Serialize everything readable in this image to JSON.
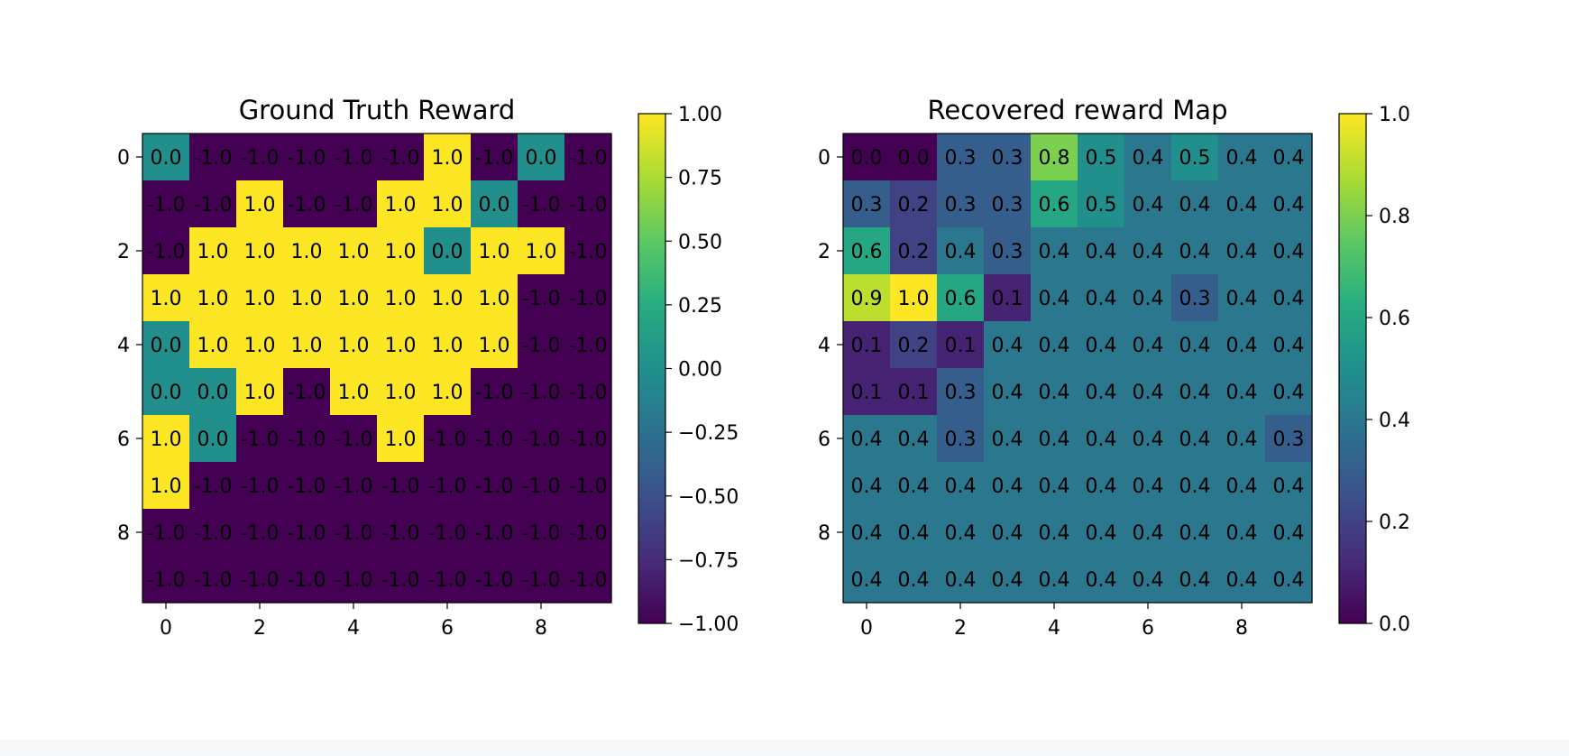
{
  "chart_data": [
    {
      "type": "heatmap",
      "title": "Ground Truth Reward",
      "colormap": "viridis",
      "x_ticks": [
        "0",
        "2",
        "4",
        "6",
        "8"
      ],
      "y_ticks": [
        "0",
        "2",
        "4",
        "6",
        "8"
      ],
      "vmin": -1.0,
      "vmax": 1.0,
      "colorbar_ticks": [
        "1.00",
        "0.75",
        "0.50",
        "0.25",
        "0.00",
        "−0.25",
        "−0.50",
        "−0.75",
        "−1.00"
      ],
      "colorbar_values": [
        1.0,
        0.75,
        0.5,
        0.25,
        0.0,
        -0.25,
        -0.5,
        -0.75,
        -1.0
      ],
      "values": [
        [
          0.0,
          -1.0,
          -1.0,
          -1.0,
          -1.0,
          -1.0,
          1.0,
          -1.0,
          0.0,
          -1.0
        ],
        [
          -1.0,
          -1.0,
          1.0,
          -1.0,
          -1.0,
          1.0,
          1.0,
          0.0,
          -1.0,
          -1.0
        ],
        [
          -1.0,
          1.0,
          1.0,
          1.0,
          1.0,
          1.0,
          0.0,
          1.0,
          1.0,
          -1.0
        ],
        [
          1.0,
          1.0,
          1.0,
          1.0,
          1.0,
          1.0,
          1.0,
          1.0,
          -1.0,
          -1.0
        ],
        [
          0.0,
          1.0,
          1.0,
          1.0,
          1.0,
          1.0,
          1.0,
          1.0,
          -1.0,
          -1.0
        ],
        [
          0.0,
          0.0,
          1.0,
          -1.0,
          1.0,
          1.0,
          1.0,
          -1.0,
          -1.0,
          -1.0
        ],
        [
          1.0,
          0.0,
          -1.0,
          -1.0,
          -1.0,
          1.0,
          -1.0,
          -1.0,
          -1.0,
          -1.0
        ],
        [
          1.0,
          -1.0,
          -1.0,
          -1.0,
          -1.0,
          -1.0,
          -1.0,
          -1.0,
          -1.0,
          -1.0
        ],
        [
          -1.0,
          -1.0,
          -1.0,
          -1.0,
          -1.0,
          -1.0,
          -1.0,
          -1.0,
          -1.0,
          -1.0
        ],
        [
          -1.0,
          -1.0,
          -1.0,
          -1.0,
          -1.0,
          -1.0,
          -1.0,
          -1.0,
          -1.0,
          -1.0
        ]
      ]
    },
    {
      "type": "heatmap",
      "title": "Recovered reward Map",
      "colormap": "viridis",
      "x_ticks": [
        "0",
        "2",
        "4",
        "6",
        "8"
      ],
      "y_ticks": [
        "0",
        "2",
        "4",
        "6",
        "8"
      ],
      "vmin": 0.0,
      "vmax": 1.0,
      "colorbar_ticks": [
        "1.0",
        "0.8",
        "0.6",
        "0.4",
        "0.2",
        "0.0"
      ],
      "colorbar_values": [
        1.0,
        0.8,
        0.6,
        0.4,
        0.2,
        0.0
      ],
      "values": [
        [
          0.0,
          0.0,
          0.3,
          0.3,
          0.8,
          0.5,
          0.4,
          0.5,
          0.4,
          0.4
        ],
        [
          0.3,
          0.2,
          0.3,
          0.3,
          0.6,
          0.5,
          0.4,
          0.4,
          0.4,
          0.4
        ],
        [
          0.6,
          0.2,
          0.4,
          0.3,
          0.4,
          0.4,
          0.4,
          0.4,
          0.4,
          0.4
        ],
        [
          0.9,
          1.0,
          0.6,
          0.1,
          0.4,
          0.4,
          0.4,
          0.3,
          0.4,
          0.4
        ],
        [
          0.1,
          0.2,
          0.1,
          0.4,
          0.4,
          0.4,
          0.4,
          0.4,
          0.4,
          0.4
        ],
        [
          0.1,
          0.1,
          0.3,
          0.4,
          0.4,
          0.4,
          0.4,
          0.4,
          0.4,
          0.4
        ],
        [
          0.4,
          0.4,
          0.3,
          0.4,
          0.4,
          0.4,
          0.4,
          0.4,
          0.4,
          0.3
        ],
        [
          0.4,
          0.4,
          0.4,
          0.4,
          0.4,
          0.4,
          0.4,
          0.4,
          0.4,
          0.4
        ],
        [
          0.4,
          0.4,
          0.4,
          0.4,
          0.4,
          0.4,
          0.4,
          0.4,
          0.4,
          0.4
        ],
        [
          0.4,
          0.4,
          0.4,
          0.4,
          0.4,
          0.4,
          0.4,
          0.4,
          0.4,
          0.4
        ]
      ]
    }
  ]
}
